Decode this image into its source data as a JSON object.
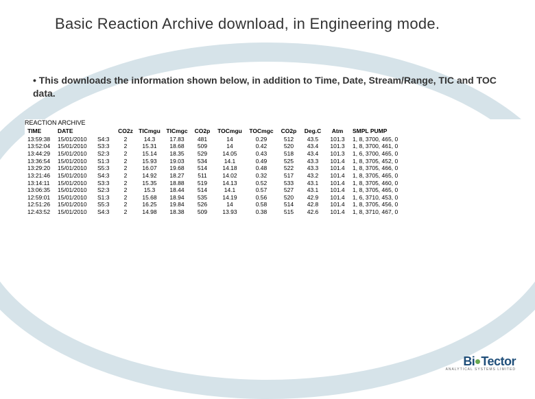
{
  "title": "Basic Reaction Archive download, in Engineering mode.",
  "description": "• This downloads the information shown below, in addition to Time, Date, Stream/Range, TIC and TOC data.",
  "archive_label": "REACTION ARCHIVE",
  "columns": [
    "TIME",
    "DATE",
    "",
    "CO2z",
    "TICmgu",
    "TICmgc",
    "CO2p",
    "TOCmgu",
    "TOCmgc",
    "CO2p",
    "Deg.C",
    "Atm",
    "SMPL PUMP"
  ],
  "rows": [
    [
      "13:59:38",
      "15/01/2010",
      "S4:3",
      "2",
      "14.3",
      "17.83",
      "481",
      "14",
      "0.29",
      "512",
      "43.5",
      "101.3",
      "1, 8, 3700, 465, 0"
    ],
    [
      "13:52:04",
      "15/01/2010",
      "S3:3",
      "2",
      "15.31",
      "18.68",
      "509",
      "14",
      "0.42",
      "520",
      "43.4",
      "101.3",
      "1, 8, 3700, 461, 0"
    ],
    [
      "13:44:29",
      "15/01/2010",
      "S2:3",
      "2",
      "15.14",
      "18.35",
      "529",
      "14.05",
      "0.43",
      "518",
      "43.4",
      "101.3",
      "1, 6, 3700, 465, 0"
    ],
    [
      "13:36:54",
      "15/01/2010",
      "S1:3",
      "2",
      "15.93",
      "19.03",
      "534",
      "14.1",
      "0.49",
      "525",
      "43.3",
      "101.4",
      "1, 8, 3705, 452, 0"
    ],
    [
      "13:29:20",
      "15/01/2010",
      "S5:3",
      "2",
      "16.07",
      "19.68",
      "514",
      "14.18",
      "0.48",
      "522",
      "43.3",
      "101.4",
      "1, 8, 3705, 466, 0"
    ],
    [
      "13:21:46",
      "15/01/2010",
      "S4:3",
      "2",
      "14.92",
      "18.27",
      "511",
      "14.02",
      "0.32",
      "517",
      "43.2",
      "101.4",
      "1, 8, 3705, 465, 0"
    ],
    [
      "13:14:11",
      "15/01/2010",
      "S3:3",
      "2",
      "15.35",
      "18.88",
      "519",
      "14.13",
      "0.52",
      "533",
      "43.1",
      "101.4",
      "1, 8, 3705, 460, 0"
    ],
    [
      "13:06:35",
      "15/01/2010",
      "S2:3",
      "2",
      "15.3",
      "18.44",
      "514",
      "14.1",
      "0.57",
      "527",
      "43.1",
      "101.4",
      "1, 8, 3705, 465, 0"
    ],
    [
      "12:59:01",
      "15/01/2010",
      "S1:3",
      "2",
      "15.68",
      "18.94",
      "535",
      "14.19",
      "0.56",
      "520",
      "42.9",
      "101.4",
      "1, 6, 3710, 453, 0"
    ],
    [
      "12:51:26",
      "15/01/2010",
      "S5:3",
      "2",
      "16.25",
      "19.84",
      "526",
      "14",
      "0.58",
      "514",
      "42.8",
      "101.4",
      "1, 8, 3705, 456, 0"
    ],
    [
      "12:43:52",
      "15/01/2010",
      "S4:3",
      "2",
      "14.98",
      "18.38",
      "509",
      "13.93",
      "0.38",
      "515",
      "42.6",
      "101.4",
      "1, 8, 3710, 467, 0"
    ]
  ],
  "logo": {
    "text_a": "Bi",
    "text_b": "Tector",
    "sub": "ANALYTICAL SYSTEMS LIMITED"
  },
  "colors": {
    "ellipse_border": "#d6e3e9",
    "text": "#333333",
    "table_text": "#000000",
    "background": "#ffffff",
    "logo_blue": "#1f4e79",
    "logo_green": "#6aa84f"
  }
}
